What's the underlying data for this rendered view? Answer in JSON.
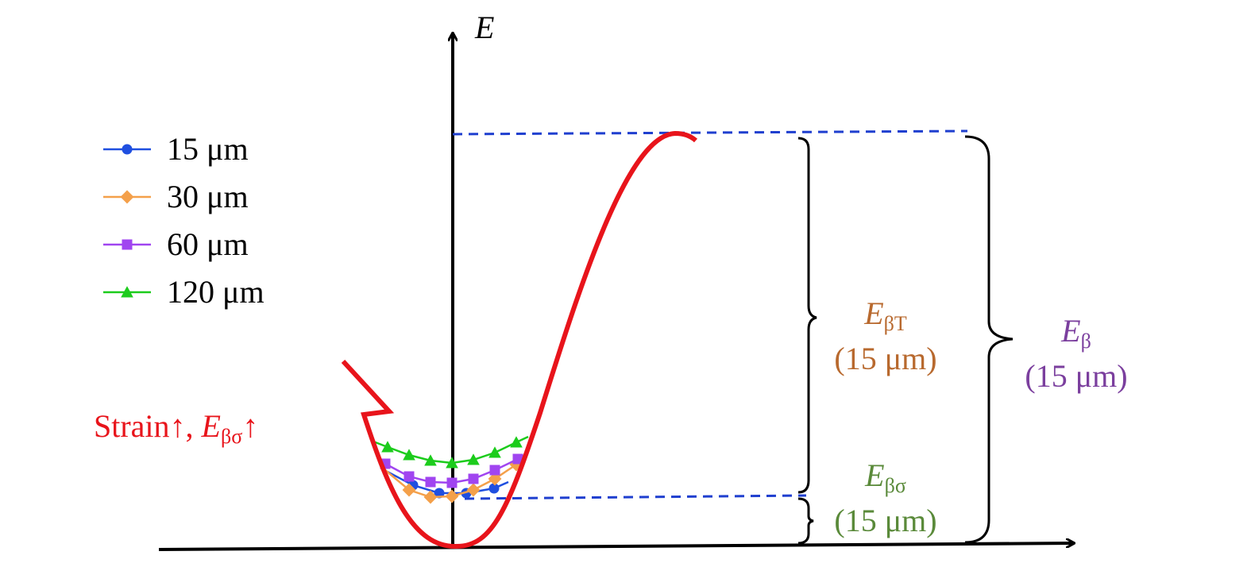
{
  "axis": {
    "y_label": "E"
  },
  "legend": [
    "15 μm",
    "30 μm",
    "60 μm",
    "120 μm"
  ],
  "strain_note": {
    "text": "Strain↑, ",
    "symbol": "E",
    "subscript": "βσ",
    "suffix": "↑"
  },
  "annotations": [
    {
      "symbol": "E",
      "subscript": "βT",
      "note": "(15 μm)"
    },
    {
      "symbol": "E",
      "subscript": "β",
      "note": "(15 μm)"
    },
    {
      "symbol": "E",
      "subscript": "βσ",
      "note": "(15 μm)"
    }
  ]
}
